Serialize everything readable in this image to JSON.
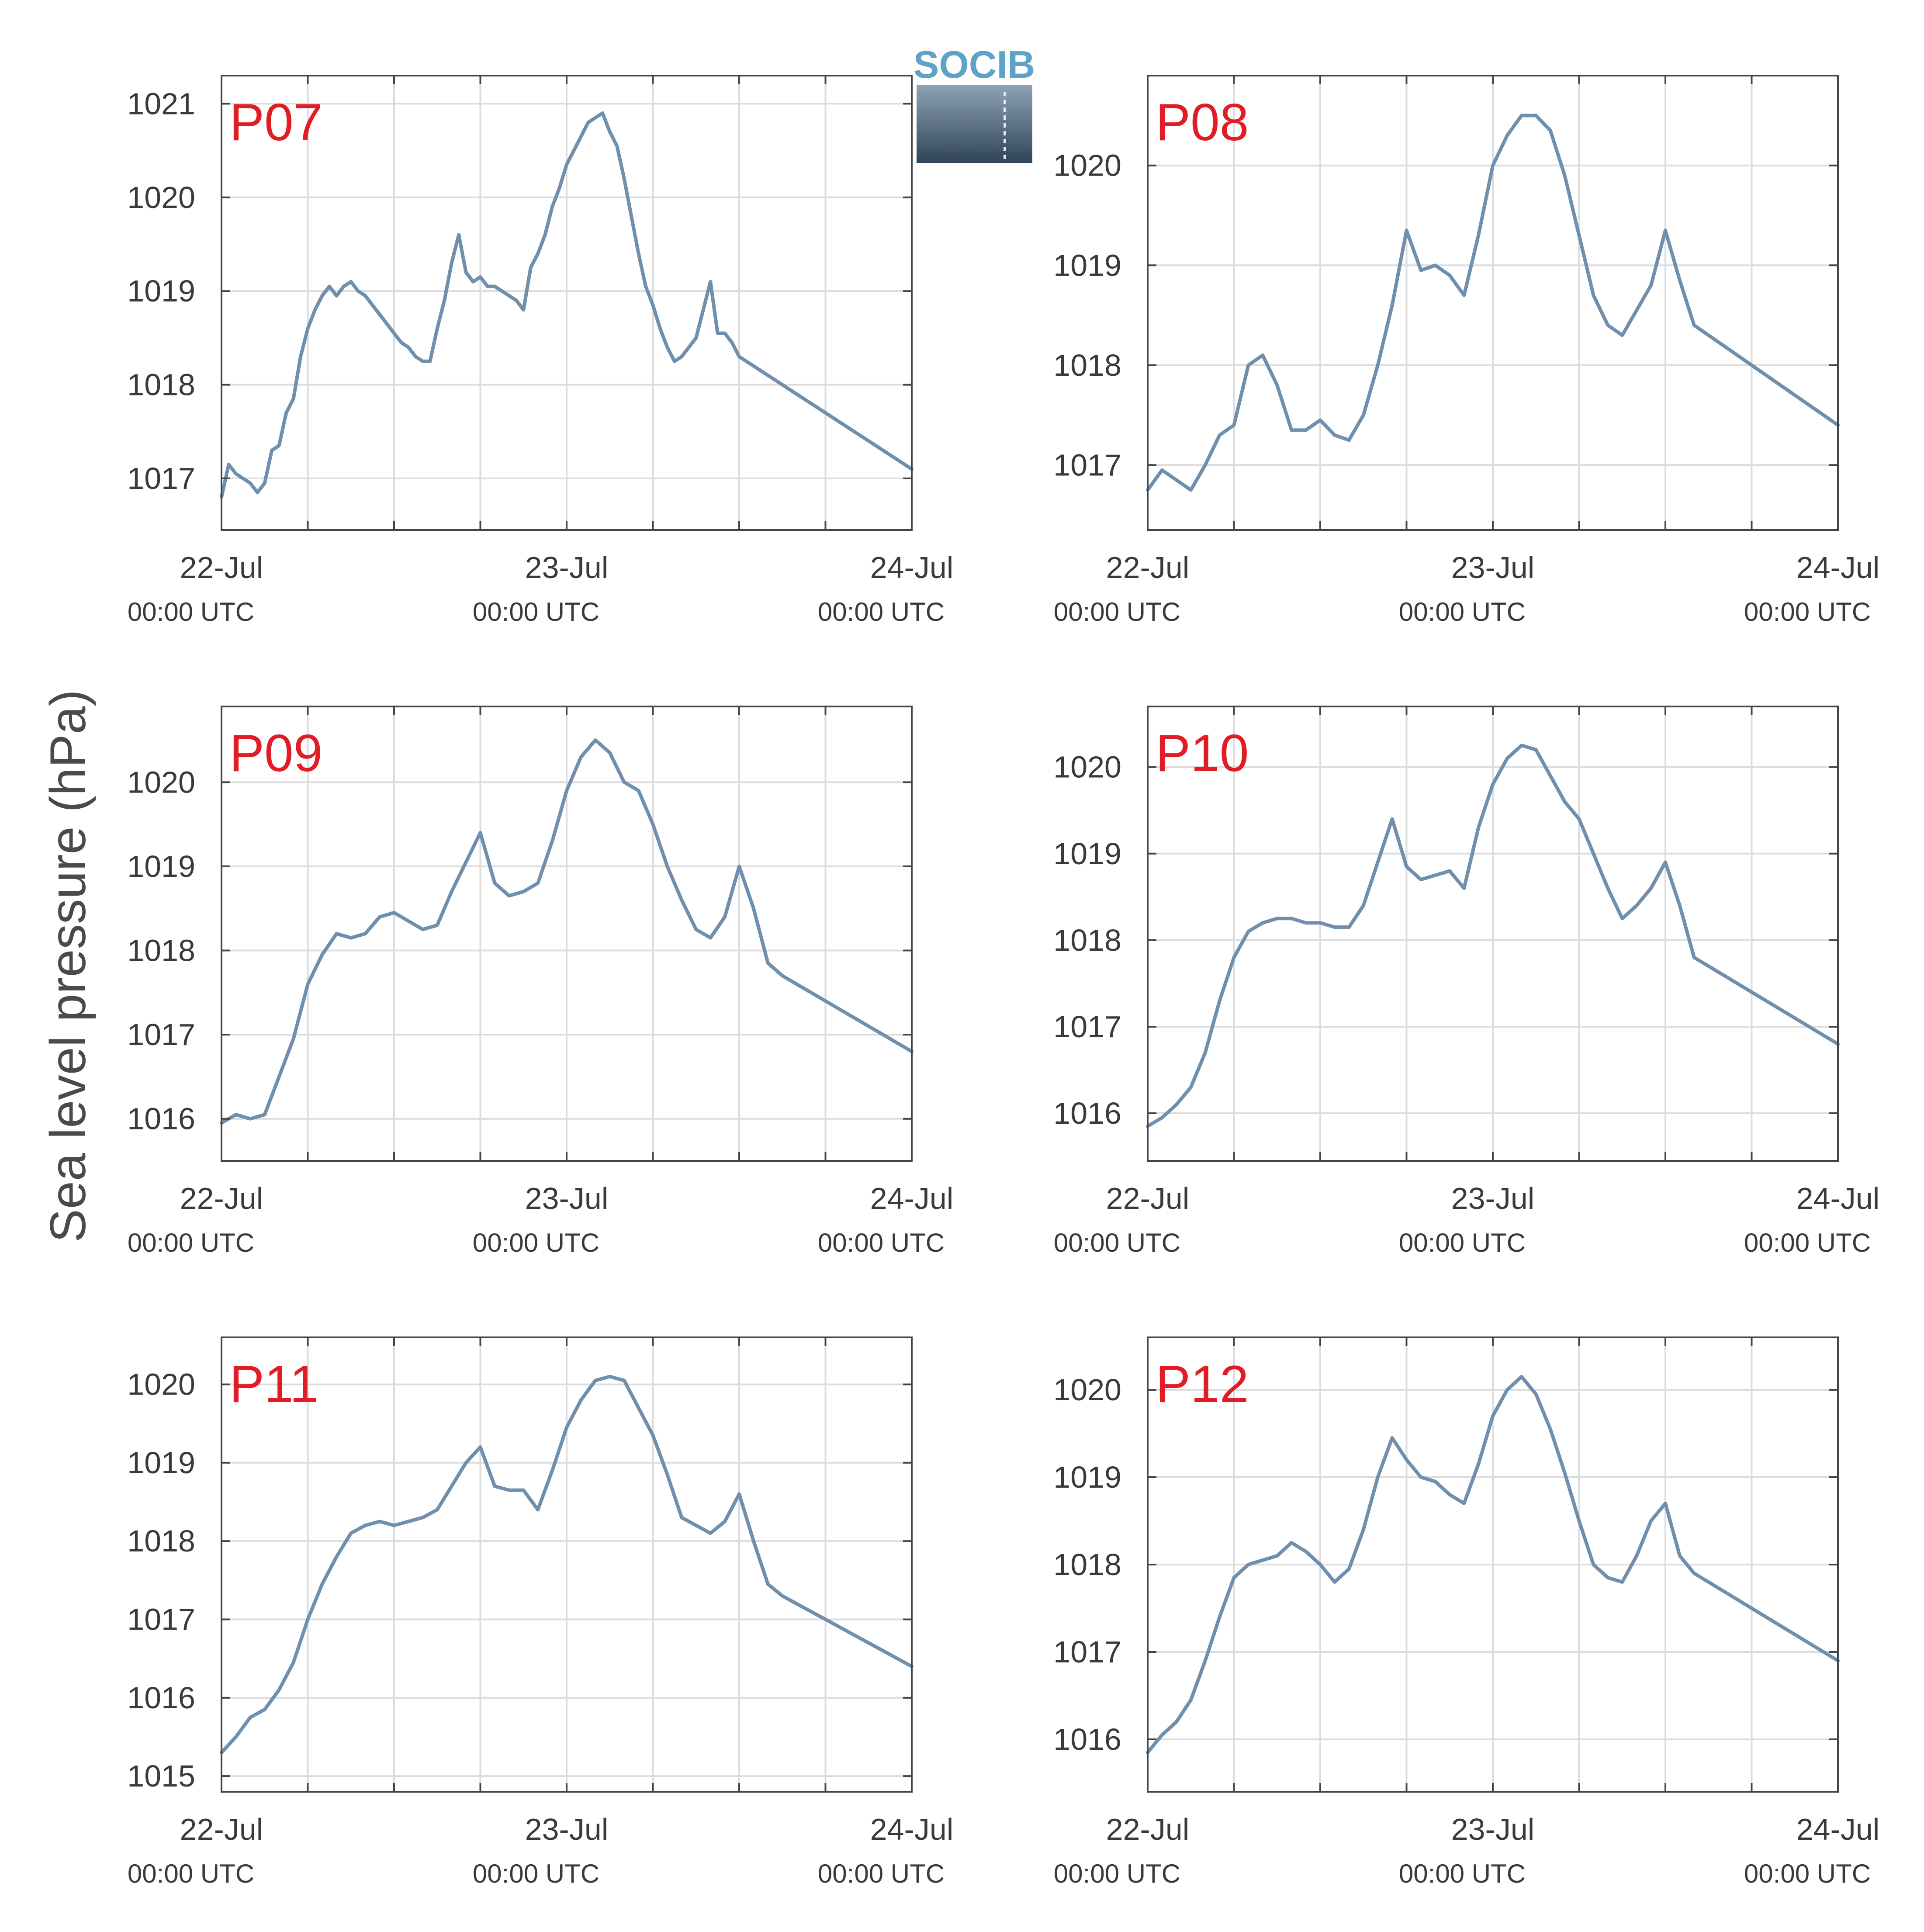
{
  "ylabel": "Sea level pressure (hPa)",
  "logo": {
    "text": "SOCIB",
    "name": "socib-logo"
  },
  "colors": {
    "line": "#6f8fad",
    "label": "#e21c24",
    "grid": "#dcdcdc",
    "axis": "#444444"
  },
  "x_ticks": [
    {
      "x": 0,
      "label": "22-Jul",
      "sub": "00:00 UTC"
    },
    {
      "x": 48,
      "label": "23-Jul",
      "sub": "00:00 UTC"
    },
    {
      "x": 96,
      "label": "24-Jul",
      "sub": "00:00 UTC"
    }
  ],
  "chart_data": [
    {
      "type": "line",
      "label": "P07",
      "xlim": [
        0,
        96
      ],
      "ylim": [
        1016.45,
        1021.3
      ],
      "yticks": [
        1017,
        1018,
        1019,
        1020,
        1021
      ],
      "x": [
        0,
        1,
        2,
        3,
        4,
        5,
        6,
        7,
        8,
        9,
        10,
        11,
        12,
        13,
        14,
        15,
        16,
        17,
        18,
        19,
        20,
        21,
        22,
        23,
        24,
        25,
        26,
        27,
        28,
        29,
        30,
        31,
        32,
        33,
        34,
        35,
        36,
        37,
        38,
        39,
        40,
        41,
        42,
        43,
        44,
        45,
        46,
        47,
        48,
        49,
        50,
        51,
        52,
        53,
        54,
        55,
        56,
        57,
        58,
        59,
        60,
        61,
        62,
        63,
        64,
        65,
        66,
        67,
        68,
        69,
        70,
        71,
        72,
        73,
        74,
        75,
        76,
        77,
        78,
        79,
        80,
        81,
        82,
        83,
        84,
        85,
        86,
        87,
        88,
        89,
        90,
        91,
        92,
        93,
        94,
        95,
        96
      ],
      "y": [
        1016.8,
        1017.15,
        1017.05,
        1017.0,
        1016.95,
        1016.85,
        1016.95,
        1017.3,
        1017.35,
        1017.7,
        1017.85,
        1018.3,
        1018.6,
        1018.8,
        1018.95,
        1019.05,
        1018.95,
        1019.05,
        1019.1,
        1019.0,
        1018.95,
        1018.85,
        1018.75,
        1018.65,
        1018.55,
        1018.45,
        1018.4,
        1018.3,
        1018.25,
        1018.25,
        1018.6,
        1018.9,
        1019.3,
        1019.6,
        1019.2,
        1019.1,
        1019.15,
        1019.05,
        1019.05,
        1019.0,
        1018.95,
        1018.9,
        1018.8,
        1019.25,
        1019.4,
        1019.6,
        1019.9,
        1020.1,
        1020.35,
        1020.5,
        1020.65,
        1020.8,
        1020.85,
        1020.9,
        1020.7,
        1020.55,
        1020.2,
        1019.8,
        1019.4,
        1019.05,
        1018.85,
        1018.6,
        1018.4,
        1018.25,
        1018.3,
        1018.4,
        1018.5,
        1018.8,
        1019.1,
        1018.55,
        1018.55,
        1018.45,
        1018.3,
        1018.25,
        1018.2,
        1018.15,
        1018.1,
        1018.05,
        1018.0,
        1017.95,
        1017.9,
        1017.85,
        1017.8,
        1017.75,
        1017.7,
        1017.65,
        1017.6,
        1017.55,
        1017.5,
        1017.45,
        1017.4,
        1017.35,
        1017.3,
        1017.25,
        1017.2,
        1017.15,
        1017.1
      ]
    },
    {
      "type": "line",
      "label": "P08",
      "xlim": [
        0,
        96
      ],
      "ylim": [
        1016.35,
        1020.9
      ],
      "yticks": [
        1017,
        1018,
        1019,
        1020
      ],
      "x": [
        0,
        2,
        4,
        6,
        8,
        10,
        12,
        14,
        16,
        18,
        20,
        22,
        24,
        26,
        28,
        30,
        32,
        34,
        36,
        38,
        40,
        42,
        44,
        46,
        48,
        50,
        52,
        54,
        56,
        58,
        60,
        62,
        64,
        66,
        68,
        70,
        72,
        74,
        76,
        78,
        80,
        82,
        84,
        86,
        88,
        90,
        92,
        94,
        96
      ],
      "y": [
        1016.75,
        1016.95,
        1016.85,
        1016.75,
        1017.0,
        1017.3,
        1017.4,
        1018.0,
        1018.1,
        1017.8,
        1017.35,
        1017.35,
        1017.45,
        1017.3,
        1017.25,
        1017.5,
        1018.0,
        1018.6,
        1019.35,
        1018.95,
        1019.0,
        1018.9,
        1018.7,
        1019.3,
        1020.0,
        1020.3,
        1020.5,
        1020.5,
        1020.35,
        1019.9,
        1019.3,
        1018.7,
        1018.4,
        1018.3,
        1018.55,
        1018.8,
        1019.35,
        1018.85,
        1018.4,
        1018.3,
        1018.2,
        1018.1,
        1018.0,
        1017.9,
        1017.8,
        1017.7,
        1017.6,
        1017.5,
        1017.4
      ]
    },
    {
      "type": "line",
      "label": "P09",
      "xlim": [
        0,
        96
      ],
      "ylim": [
        1015.5,
        1020.9
      ],
      "yticks": [
        1016,
        1017,
        1018,
        1019,
        1020
      ],
      "x": [
        0,
        2,
        4,
        6,
        8,
        10,
        12,
        14,
        16,
        18,
        20,
        22,
        24,
        26,
        28,
        30,
        32,
        34,
        36,
        38,
        40,
        42,
        44,
        46,
        48,
        50,
        52,
        54,
        56,
        58,
        60,
        62,
        64,
        66,
        68,
        70,
        72,
        74,
        76,
        78,
        80,
        82,
        84,
        86,
        88,
        90,
        92,
        94,
        96
      ],
      "y": [
        1015.95,
        1016.05,
        1016.0,
        1016.05,
        1016.5,
        1016.95,
        1017.6,
        1017.95,
        1018.2,
        1018.15,
        1018.2,
        1018.4,
        1018.45,
        1018.35,
        1018.25,
        1018.3,
        1018.7,
        1019.05,
        1019.4,
        1018.8,
        1018.65,
        1018.7,
        1018.8,
        1019.3,
        1019.9,
        1020.3,
        1020.5,
        1020.35,
        1020.0,
        1019.9,
        1019.5,
        1019.0,
        1018.6,
        1018.25,
        1018.15,
        1018.4,
        1019.0,
        1018.5,
        1017.85,
        1017.7,
        1017.6,
        1017.5,
        1017.4,
        1017.3,
        1017.2,
        1017.1,
        1017.0,
        1016.9,
        1016.8
      ]
    },
    {
      "type": "line",
      "label": "P10",
      "xlim": [
        0,
        96
      ],
      "ylim": [
        1015.45,
        1020.7
      ],
      "yticks": [
        1016,
        1017,
        1018,
        1019,
        1020
      ],
      "x": [
        0,
        2,
        4,
        6,
        8,
        10,
        12,
        14,
        16,
        18,
        20,
        22,
        24,
        26,
        28,
        30,
        32,
        34,
        36,
        38,
        40,
        42,
        44,
        46,
        48,
        50,
        52,
        54,
        56,
        58,
        60,
        62,
        64,
        66,
        68,
        70,
        72,
        74,
        76,
        78,
        80,
        82,
        84,
        86,
        88,
        90,
        92,
        94,
        96
      ],
      "y": [
        1015.85,
        1015.95,
        1016.1,
        1016.3,
        1016.7,
        1017.3,
        1017.8,
        1018.1,
        1018.2,
        1018.25,
        1018.25,
        1018.2,
        1018.2,
        1018.15,
        1018.15,
        1018.4,
        1018.9,
        1019.4,
        1018.85,
        1018.7,
        1018.75,
        1018.8,
        1018.6,
        1019.3,
        1019.8,
        1020.1,
        1020.25,
        1020.2,
        1019.9,
        1019.6,
        1019.4,
        1019.0,
        1018.6,
        1018.25,
        1018.4,
        1018.6,
        1018.9,
        1018.4,
        1017.8,
        1017.7,
        1017.6,
        1017.5,
        1017.4,
        1017.3,
        1017.2,
        1017.1,
        1017.0,
        1016.9,
        1016.8
      ]
    },
    {
      "type": "line",
      "label": "P11",
      "xlim": [
        0,
        96
      ],
      "ylim": [
        1014.8,
        1020.6
      ],
      "yticks": [
        1015,
        1016,
        1017,
        1018,
        1019,
        1020
      ],
      "x": [
        0,
        2,
        4,
        6,
        8,
        10,
        12,
        14,
        16,
        18,
        20,
        22,
        24,
        26,
        28,
        30,
        32,
        34,
        36,
        38,
        40,
        42,
        44,
        46,
        48,
        50,
        52,
        54,
        56,
        58,
        60,
        62,
        64,
        66,
        68,
        70,
        72,
        74,
        76,
        78,
        80,
        82,
        84,
        86,
        88,
        90,
        92,
        94,
        96
      ],
      "y": [
        1015.3,
        1015.5,
        1015.75,
        1015.85,
        1016.1,
        1016.45,
        1017.0,
        1017.45,
        1017.8,
        1018.1,
        1018.2,
        1018.25,
        1018.2,
        1018.25,
        1018.3,
        1018.4,
        1018.7,
        1019.0,
        1019.2,
        1018.7,
        1018.65,
        1018.65,
        1018.4,
        1018.9,
        1019.45,
        1019.8,
        1020.05,
        1020.1,
        1020.05,
        1019.7,
        1019.35,
        1018.85,
        1018.3,
        1018.2,
        1018.1,
        1018.25,
        1018.6,
        1018.0,
        1017.45,
        1017.3,
        1017.2,
        1017.1,
        1017.0,
        1016.9,
        1016.8,
        1016.7,
        1016.6,
        1016.5,
        1016.4
      ]
    },
    {
      "type": "line",
      "label": "P12",
      "xlim": [
        0,
        96
      ],
      "ylim": [
        1015.4,
        1020.6
      ],
      "yticks": [
        1016,
        1017,
        1018,
        1019,
        1020
      ],
      "x": [
        0,
        2,
        4,
        6,
        8,
        10,
        12,
        14,
        16,
        18,
        20,
        22,
        24,
        26,
        28,
        30,
        32,
        34,
        36,
        38,
        40,
        42,
        44,
        46,
        48,
        50,
        52,
        54,
        56,
        58,
        60,
        62,
        64,
        66,
        68,
        70,
        72,
        74,
        76,
        78,
        80,
        82,
        84,
        86,
        88,
        90,
        92,
        94,
        96
      ],
      "y": [
        1015.85,
        1016.05,
        1016.2,
        1016.45,
        1016.9,
        1017.4,
        1017.85,
        1018.0,
        1018.05,
        1018.1,
        1018.25,
        1018.15,
        1018.0,
        1017.8,
        1017.95,
        1018.4,
        1019.0,
        1019.45,
        1019.2,
        1019.0,
        1018.95,
        1018.8,
        1018.7,
        1019.15,
        1019.7,
        1020.0,
        1020.15,
        1019.95,
        1019.55,
        1019.05,
        1018.5,
        1018.0,
        1017.85,
        1017.8,
        1018.1,
        1018.5,
        1018.7,
        1018.1,
        1017.9,
        1017.8,
        1017.7,
        1017.6,
        1017.5,
        1017.4,
        1017.3,
        1017.2,
        1017.1,
        1017.0,
        1016.9
      ]
    }
  ]
}
